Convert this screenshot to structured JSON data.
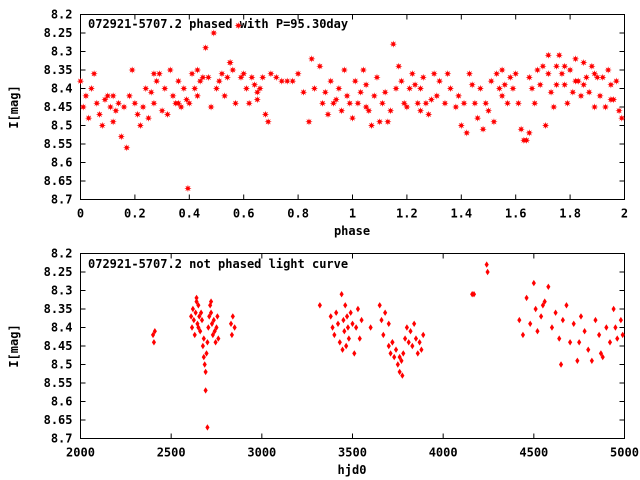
{
  "chart_data": [
    {
      "type": "scatter",
      "title": "072921-5707.2 phased with P=95.30day",
      "xlabel": "phase",
      "ylabel": "I[mag]",
      "xlim": [
        0,
        2
      ],
      "ylim": [
        8.7,
        8.2
      ],
      "y_inverted": true,
      "grid": false,
      "marker": "star",
      "color": "#ff0000",
      "xticks": [
        "0",
        "0.2",
        "0.4",
        "0.6",
        "0.8",
        "1",
        "1.2",
        "1.4",
        "1.6",
        "1.8",
        "2"
      ],
      "yticks": [
        "8.2",
        "8.25",
        "8.3",
        "8.35",
        "8.4",
        "8.45",
        "8.5",
        "8.55",
        "8.6",
        "8.65",
        "8.7"
      ],
      "points": [
        [
          0.0,
          8.38
        ],
        [
          0.01,
          8.45
        ],
        [
          0.02,
          8.42
        ],
        [
          0.03,
          8.48
        ],
        [
          0.04,
          8.4
        ],
        [
          0.05,
          8.36
        ],
        [
          0.06,
          8.44
        ],
        [
          0.07,
          8.47
        ],
        [
          0.08,
          8.5
        ],
        [
          0.09,
          8.43
        ],
        [
          0.1,
          8.42
        ],
        [
          0.11,
          8.45
        ],
        [
          0.12,
          8.49
        ],
        [
          0.13,
          8.46
        ],
        [
          0.14,
          8.44
        ],
        [
          0.15,
          8.53
        ],
        [
          0.16,
          8.45
        ],
        [
          0.17,
          8.56
        ],
        [
          0.18,
          8.42
        ],
        [
          0.19,
          8.35
        ],
        [
          0.2,
          8.44
        ],
        [
          0.21,
          8.47
        ],
        [
          0.22,
          8.5
        ],
        [
          0.23,
          8.45
        ],
        [
          0.24,
          8.4
        ],
        [
          0.25,
          8.48
        ],
        [
          0.26,
          8.41
        ],
        [
          0.27,
          8.44
        ],
        [
          0.28,
          8.38
        ],
        [
          0.29,
          8.36
        ],
        [
          0.3,
          8.46
        ],
        [
          0.31,
          8.4
        ],
        [
          0.32,
          8.47
        ],
        [
          0.33,
          8.35
        ],
        [
          0.34,
          8.42
        ],
        [
          0.35,
          8.44
        ],
        [
          0.36,
          8.38
        ],
        [
          0.37,
          8.45
        ],
        [
          0.38,
          8.4
        ],
        [
          0.39,
          8.43
        ],
        [
          0.4,
          8.44
        ],
        [
          0.41,
          8.36
        ],
        [
          0.42,
          8.4
        ],
        [
          0.43,
          8.42
        ],
        [
          0.44,
          8.38
        ],
        [
          0.45,
          8.37
        ],
        [
          0.46,
          8.29
        ],
        [
          0.47,
          8.37
        ],
        [
          0.48,
          8.45
        ],
        [
          0.49,
          8.25
        ],
        [
          0.5,
          8.4
        ],
        [
          0.51,
          8.38
        ],
        [
          0.52,
          8.36
        ],
        [
          0.53,
          8.42
        ],
        [
          0.54,
          8.37
        ],
        [
          0.55,
          8.33
        ],
        [
          0.56,
          8.35
        ],
        [
          0.57,
          8.44
        ],
        [
          0.58,
          8.23
        ],
        [
          0.59,
          8.37
        ],
        [
          0.6,
          8.36
        ],
        [
          0.61,
          8.4
        ],
        [
          0.62,
          8.44
        ],
        [
          0.63,
          8.37
        ],
        [
          0.64,
          8.39
        ],
        [
          0.65,
          8.43
        ],
        [
          0.66,
          8.4
        ],
        [
          0.67,
          8.37
        ],
        [
          0.68,
          8.47
        ],
        [
          0.69,
          8.49
        ],
        [
          0.7,
          8.36
        ],
        [
          0.72,
          8.37
        ],
        [
          0.74,
          8.38
        ],
        [
          0.76,
          8.38
        ],
        [
          0.78,
          8.38
        ],
        [
          0.8,
          8.36
        ],
        [
          0.82,
          8.41
        ],
        [
          0.84,
          8.49
        ],
        [
          0.85,
          8.32
        ],
        [
          0.86,
          8.4
        ],
        [
          0.88,
          8.34
        ],
        [
          0.89,
          8.44
        ],
        [
          0.9,
          8.41
        ],
        [
          0.91,
          8.47
        ],
        [
          0.92,
          8.38
        ],
        [
          0.93,
          8.44
        ],
        [
          0.94,
          8.43
        ],
        [
          0.95,
          8.4
        ],
        [
          0.96,
          8.46
        ],
        [
          0.97,
          8.35
        ],
        [
          0.98,
          8.42
        ],
        [
          0.99,
          8.44
        ],
        [
          1.0,
          8.48
        ],
        [
          1.01,
          8.38
        ],
        [
          1.02,
          8.44
        ],
        [
          1.03,
          8.41
        ],
        [
          1.04,
          8.35
        ],
        [
          1.05,
          8.39
        ],
        [
          1.06,
          8.46
        ],
        [
          1.07,
          8.5
        ],
        [
          1.08,
          8.42
        ],
        [
          1.09,
          8.37
        ],
        [
          1.1,
          8.49
        ],
        [
          1.11,
          8.44
        ],
        [
          1.12,
          8.41
        ],
        [
          1.13,
          8.49
        ],
        [
          1.14,
          8.46
        ],
        [
          1.15,
          8.28
        ],
        [
          1.16,
          8.4
        ],
        [
          1.17,
          8.34
        ],
        [
          1.18,
          8.38
        ],
        [
          1.19,
          8.44
        ],
        [
          1.2,
          8.45
        ],
        [
          1.21,
          8.4
        ],
        [
          1.22,
          8.36
        ],
        [
          1.23,
          8.39
        ],
        [
          1.24,
          8.44
        ],
        [
          1.25,
          8.4
        ],
        [
          1.26,
          8.37
        ],
        [
          1.27,
          8.44
        ],
        [
          1.28,
          8.47
        ],
        [
          1.29,
          8.43
        ],
        [
          1.3,
          8.36
        ],
        [
          1.31,
          8.42
        ],
        [
          1.32,
          8.38
        ],
        [
          1.34,
          8.44
        ],
        [
          1.35,
          8.36
        ],
        [
          1.36,
          8.4
        ],
        [
          1.38,
          8.45
        ],
        [
          1.39,
          8.42
        ],
        [
          1.4,
          8.5
        ],
        [
          1.41,
          8.44
        ],
        [
          1.42,
          8.52
        ],
        [
          1.43,
          8.36
        ],
        [
          1.44,
          8.39
        ],
        [
          1.45,
          8.44
        ],
        [
          1.46,
          8.48
        ],
        [
          1.47,
          8.4
        ],
        [
          1.48,
          8.51
        ],
        [
          1.49,
          8.44
        ],
        [
          1.5,
          8.46
        ],
        [
          1.51,
          8.38
        ],
        [
          1.52,
          8.49
        ],
        [
          1.53,
          8.36
        ],
        [
          1.54,
          8.4
        ],
        [
          1.55,
          8.42
        ],
        [
          1.56,
          8.39
        ],
        [
          1.57,
          8.44
        ],
        [
          1.58,
          8.37
        ],
        [
          1.59,
          8.4
        ],
        [
          1.6,
          8.36
        ],
        [
          1.61,
          8.44
        ],
        [
          1.62,
          8.51
        ],
        [
          1.63,
          8.54
        ],
        [
          1.64,
          8.54
        ],
        [
          1.65,
          8.37
        ],
        [
          1.66,
          8.4
        ],
        [
          1.67,
          8.44
        ],
        [
          1.68,
          8.35
        ],
        [
          1.69,
          8.39
        ],
        [
          1.7,
          8.34
        ],
        [
          1.71,
          8.5
        ],
        [
          1.72,
          8.36
        ],
        [
          1.73,
          8.41
        ],
        [
          1.74,
          8.45
        ],
        [
          1.75,
          8.34
        ],
        [
          1.76,
          8.31
        ],
        [
          1.77,
          8.36
        ],
        [
          1.78,
          8.39
        ],
        [
          1.79,
          8.44
        ],
        [
          1.8,
          8.35
        ],
        [
          1.81,
          8.41
        ],
        [
          1.82,
          8.32
        ],
        [
          1.83,
          8.38
        ],
        [
          1.84,
          8.42
        ],
        [
          1.85,
          8.39
        ],
        [
          1.86,
          8.37
        ],
        [
          1.87,
          8.41
        ],
        [
          1.88,
          8.34
        ],
        [
          1.89,
          8.45
        ],
        [
          1.9,
          8.37
        ],
        [
          1.91,
          8.42
        ],
        [
          1.92,
          8.37
        ],
        [
          1.93,
          8.45
        ],
        [
          1.94,
          8.35
        ],
        [
          1.95,
          8.39
        ],
        [
          1.96,
          8.43
        ],
        [
          1.97,
          8.38
        ],
        [
          1.98,
          8.46
        ],
        [
          1.99,
          8.48
        ],
        [
          0.395,
          8.67
        ],
        [
          0.55,
          8.33
        ],
        [
          0.12,
          8.42
        ],
        [
          0.27,
          8.36
        ],
        [
          0.36,
          8.44
        ],
        [
          0.43,
          8.35
        ],
        [
          0.65,
          8.41
        ],
        [
          1.05,
          8.45
        ],
        [
          1.25,
          8.46
        ],
        [
          1.55,
          8.35
        ],
        [
          1.65,
          8.52
        ],
        [
          1.75,
          8.39
        ],
        [
          1.85,
          8.33
        ],
        [
          1.95,
          8.43
        ],
        [
          1.72,
          8.31
        ],
        [
          1.78,
          8.34
        ],
        [
          1.82,
          8.38
        ],
        [
          1.89,
          8.36
        ]
      ]
    },
    {
      "type": "scatter",
      "title": "072921-5707.2 not phased light curve",
      "xlabel": "hjd0",
      "ylabel": "I[mag]",
      "xlim": [
        2000,
        5000
      ],
      "ylim": [
        8.7,
        8.2
      ],
      "y_inverted": true,
      "grid": false,
      "marker": "diamond",
      "color": "#ff0000",
      "xticks": [
        "2000",
        "2500",
        "3000",
        "3500",
        "4000",
        "4500",
        "5000"
      ],
      "yticks": [
        "8.2",
        "8.25",
        "8.3",
        "8.35",
        "8.4",
        "8.45",
        "8.5",
        "8.55",
        "8.6",
        "8.65",
        "8.7"
      ],
      "points": [
        [
          2400,
          8.42
        ],
        [
          2405,
          8.44
        ],
        [
          2410,
          8.41
        ],
        [
          2610,
          8.37
        ],
        [
          2615,
          8.4
        ],
        [
          2620,
          8.35
        ],
        [
          2625,
          8.38
        ],
        [
          2630,
          8.42
        ],
        [
          2635,
          8.36
        ],
        [
          2640,
          8.33
        ],
        [
          2645,
          8.39
        ],
        [
          2650,
          8.34
        ],
        [
          2655,
          8.37
        ],
        [
          2660,
          8.41
        ],
        [
          2665,
          8.36
        ],
        [
          2670,
          8.38
        ],
        [
          2675,
          8.45
        ],
        [
          2680,
          8.48
        ],
        [
          2685,
          8.5
        ],
        [
          2690,
          8.52
        ],
        [
          2695,
          8.47
        ],
        [
          2700,
          8.44
        ],
        [
          2705,
          8.4
        ],
        [
          2710,
          8.37
        ],
        [
          2715,
          8.34
        ],
        [
          2720,
          8.36
        ],
        [
          2725,
          8.39
        ],
        [
          2730,
          8.42
        ],
        [
          2735,
          8.38
        ],
        [
          2740,
          8.41
        ],
        [
          2745,
          8.44
        ],
        [
          2750,
          8.4
        ],
        [
          2755,
          8.37
        ],
        [
          2760,
          8.43
        ],
        [
          2690,
          8.57
        ],
        [
          2700,
          8.67
        ],
        [
          2720,
          8.33
        ],
        [
          2640,
          8.32
        ],
        [
          2650,
          8.4
        ],
        [
          2680,
          8.43
        ],
        [
          2830,
          8.39
        ],
        [
          2835,
          8.42
        ],
        [
          2840,
          8.37
        ],
        [
          2850,
          8.4
        ],
        [
          3320,
          8.34
        ],
        [
          3380,
          8.37
        ],
        [
          3390,
          8.4
        ],
        [
          3400,
          8.42
        ],
        [
          3410,
          8.36
        ],
        [
          3420,
          8.39
        ],
        [
          3430,
          8.44
        ],
        [
          3440,
          8.31
        ],
        [
          3445,
          8.46
        ],
        [
          3450,
          8.38
        ],
        [
          3455,
          8.41
        ],
        [
          3460,
          8.34
        ],
        [
          3465,
          8.45
        ],
        [
          3470,
          8.37
        ],
        [
          3475,
          8.4
        ],
        [
          3480,
          8.43
        ],
        [
          3490,
          8.36
        ],
        [
          3500,
          8.39
        ],
        [
          3510,
          8.47
        ],
        [
          3520,
          8.4
        ],
        [
          3530,
          8.35
        ],
        [
          3540,
          8.43
        ],
        [
          3550,
          8.38
        ],
        [
          3600,
          8.4
        ],
        [
          3650,
          8.34
        ],
        [
          3660,
          8.38
        ],
        [
          3670,
          8.42
        ],
        [
          3680,
          8.36
        ],
        [
          3700,
          8.45
        ],
        [
          3710,
          8.47
        ],
        [
          3720,
          8.44
        ],
        [
          3730,
          8.48
        ],
        [
          3740,
          8.46
        ],
        [
          3750,
          8.5
        ],
        [
          3760,
          8.52
        ],
        [
          3770,
          8.49
        ],
        [
          3775,
          8.53
        ],
        [
          3780,
          8.47
        ],
        [
          3790,
          8.43
        ],
        [
          3800,
          8.4
        ],
        [
          3810,
          8.44
        ],
        [
          3820,
          8.41
        ],
        [
          3830,
          8.45
        ],
        [
          3840,
          8.39
        ],
        [
          3850,
          8.43
        ],
        [
          3860,
          8.47
        ],
        [
          3870,
          8.44
        ],
        [
          3880,
          8.46
        ],
        [
          3890,
          8.42
        ],
        [
          3700,
          8.39
        ],
        [
          3720,
          8.44
        ],
        [
          3760,
          8.48
        ],
        [
          4160,
          8.31
        ],
        [
          4170,
          8.31
        ],
        [
          4240,
          8.23
        ],
        [
          4245,
          8.25
        ],
        [
          4420,
          8.38
        ],
        [
          4440,
          8.42
        ],
        [
          4460,
          8.32
        ],
        [
          4480,
          8.39
        ],
        [
          4500,
          8.28
        ],
        [
          4510,
          8.35
        ],
        [
          4520,
          8.41
        ],
        [
          4540,
          8.37
        ],
        [
          4560,
          8.33
        ],
        [
          4580,
          8.29
        ],
        [
          4600,
          8.4
        ],
        [
          4620,
          8.36
        ],
        [
          4640,
          8.43
        ],
        [
          4660,
          8.38
        ],
        [
          4680,
          8.34
        ],
        [
          4700,
          8.44
        ],
        [
          4720,
          8.39
        ],
        [
          4740,
          8.49
        ],
        [
          4760,
          8.37
        ],
        [
          4780,
          8.41
        ],
        [
          4800,
          8.46
        ],
        [
          4820,
          8.49
        ],
        [
          4840,
          8.38
        ],
        [
          4860,
          8.42
        ],
        [
          4880,
          8.48
        ],
        [
          4900,
          8.4
        ],
        [
          4920,
          8.44
        ],
        [
          4940,
          8.35
        ],
        [
          4960,
          8.43
        ],
        [
          4980,
          8.38
        ],
        [
          4990,
          8.42
        ],
        [
          4550,
          8.34
        ],
        [
          4650,
          8.5
        ],
        [
          4750,
          8.44
        ],
        [
          4870,
          8.47
        ],
        [
          4950,
          8.4
        ]
      ]
    }
  ]
}
